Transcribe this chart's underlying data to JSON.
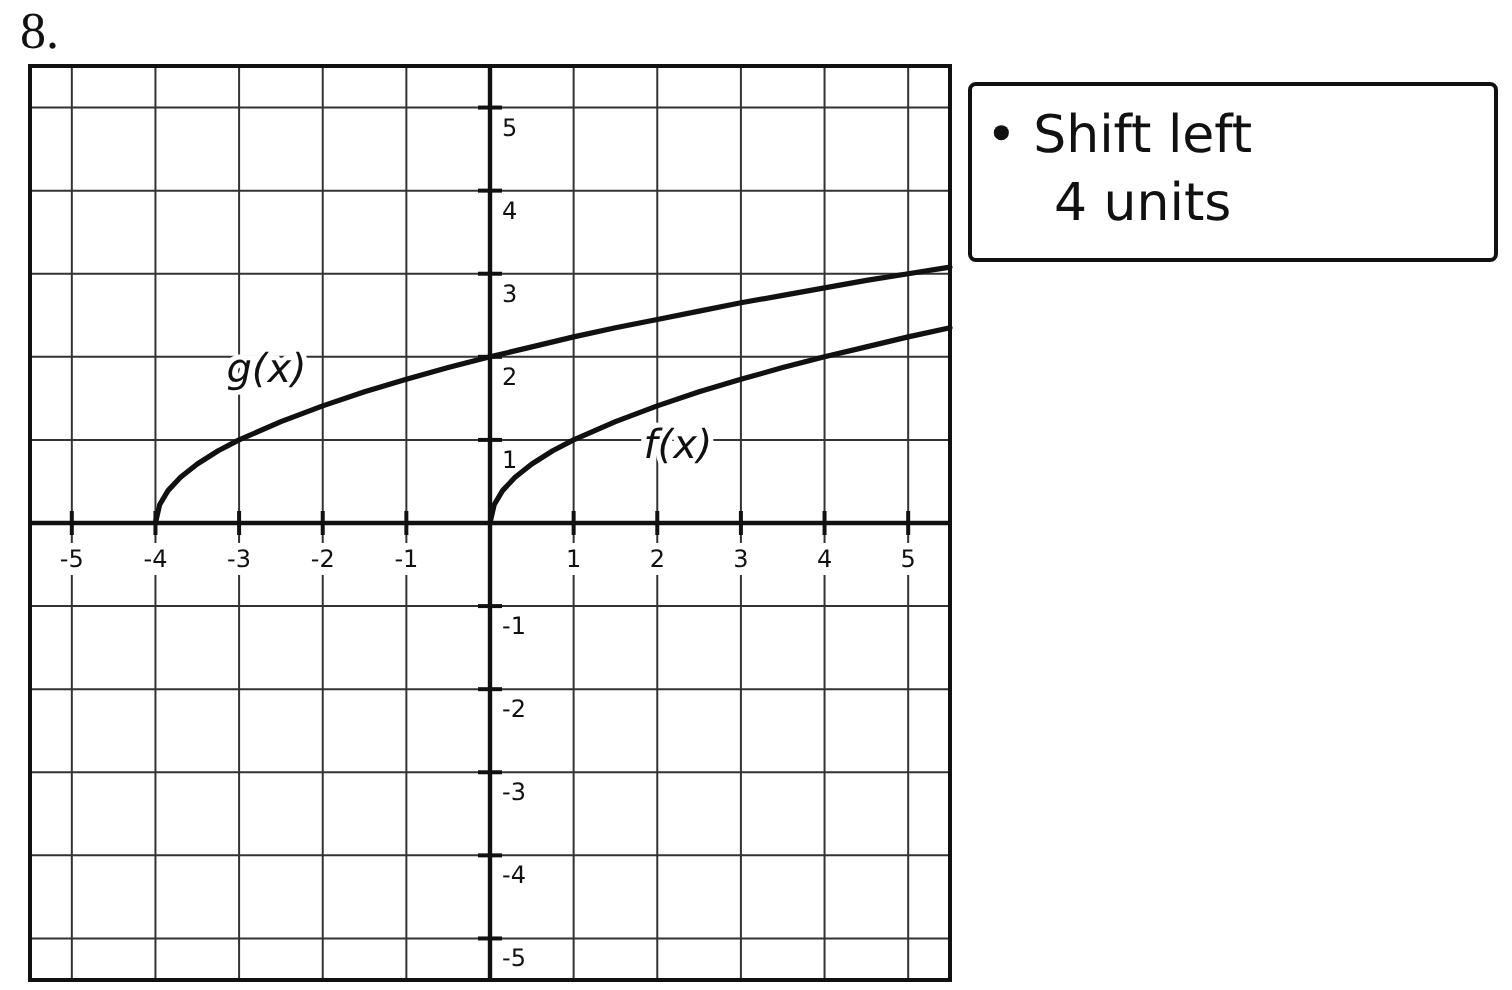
{
  "chart_data": {
    "type": "line",
    "title": "8.",
    "series": [
      {
        "name": "g(x)",
        "color": "#111111",
        "x": [
          -4,
          -3.95,
          -3.85,
          -3.7,
          -3.5,
          -3.25,
          -3,
          -2.5,
          -2,
          -1.5,
          -1,
          -0.5,
          0,
          0.5,
          1,
          1.5,
          2,
          2.5,
          3,
          3.5,
          4,
          4.5,
          5,
          5.5
        ],
        "values": [
          0,
          0.22,
          0.39,
          0.55,
          0.71,
          0.87,
          1,
          1.22,
          1.41,
          1.58,
          1.73,
          1.87,
          2,
          2.12,
          2.24,
          2.35,
          2.45,
          2.55,
          2.65,
          2.74,
          2.83,
          2.92,
          3,
          3.08
        ]
      },
      {
        "name": "f(x)",
        "color": "#111111",
        "x": [
          0,
          0.05,
          0.15,
          0.3,
          0.5,
          0.75,
          1,
          1.5,
          2,
          2.5,
          3,
          3.5,
          4,
          4.5,
          5,
          5.5
        ],
        "values": [
          0,
          0.22,
          0.39,
          0.55,
          0.71,
          0.87,
          1,
          1.22,
          1.41,
          1.58,
          1.73,
          1.87,
          2,
          2.12,
          2.24,
          2.35
        ]
      }
    ],
    "xlim": [
      -5.5,
      5.5
    ],
    "ylim": [
      -5.5,
      5.5
    ],
    "xticks": [
      -5,
      -4,
      -3,
      -2,
      -1,
      1,
      2,
      3,
      4,
      5
    ],
    "yticks": [
      -5,
      -4,
      -3,
      -2,
      -1,
      1,
      2,
      3,
      4,
      5
    ],
    "grid": true,
    "marker": "none",
    "line_style": "solid",
    "annotations": [
      "• Shift left 4 units"
    ]
  }
}
